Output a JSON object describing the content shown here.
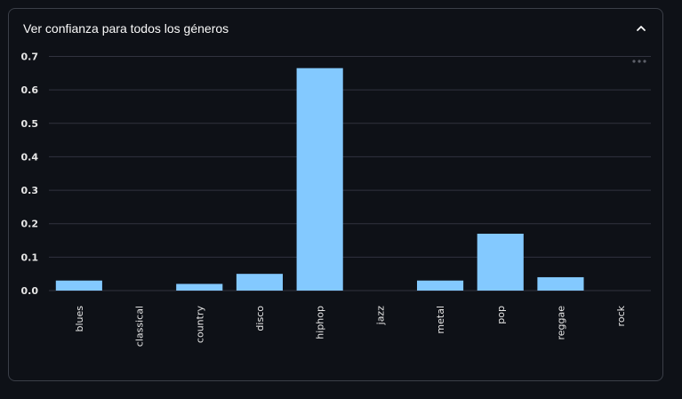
{
  "expander": {
    "title": "Ver confianza para todos los géneros",
    "chevron_icon": "chevron-up-icon",
    "menu_icon": "more-horizontal-icon"
  },
  "chart_data": {
    "type": "bar",
    "categories": [
      "blues",
      "classical",
      "country",
      "disco",
      "hiphop",
      "jazz",
      "metal",
      "pop",
      "reggae",
      "rock"
    ],
    "values": [
      0.03,
      0.0,
      0.02,
      0.05,
      0.665,
      0.0,
      0.03,
      0.17,
      0.04,
      0.0
    ],
    "yticks": [
      0.0,
      0.1,
      0.2,
      0.3,
      0.4,
      0.5,
      0.6,
      0.7
    ],
    "ytick_labels": [
      "0.0",
      "0.1",
      "0.2",
      "0.3",
      "0.4",
      "0.5",
      "0.6",
      "0.7"
    ],
    "ylim": [
      0,
      0.7
    ],
    "grid": true,
    "bar_color": "#83c9ff",
    "grid_color": "#31333f"
  }
}
